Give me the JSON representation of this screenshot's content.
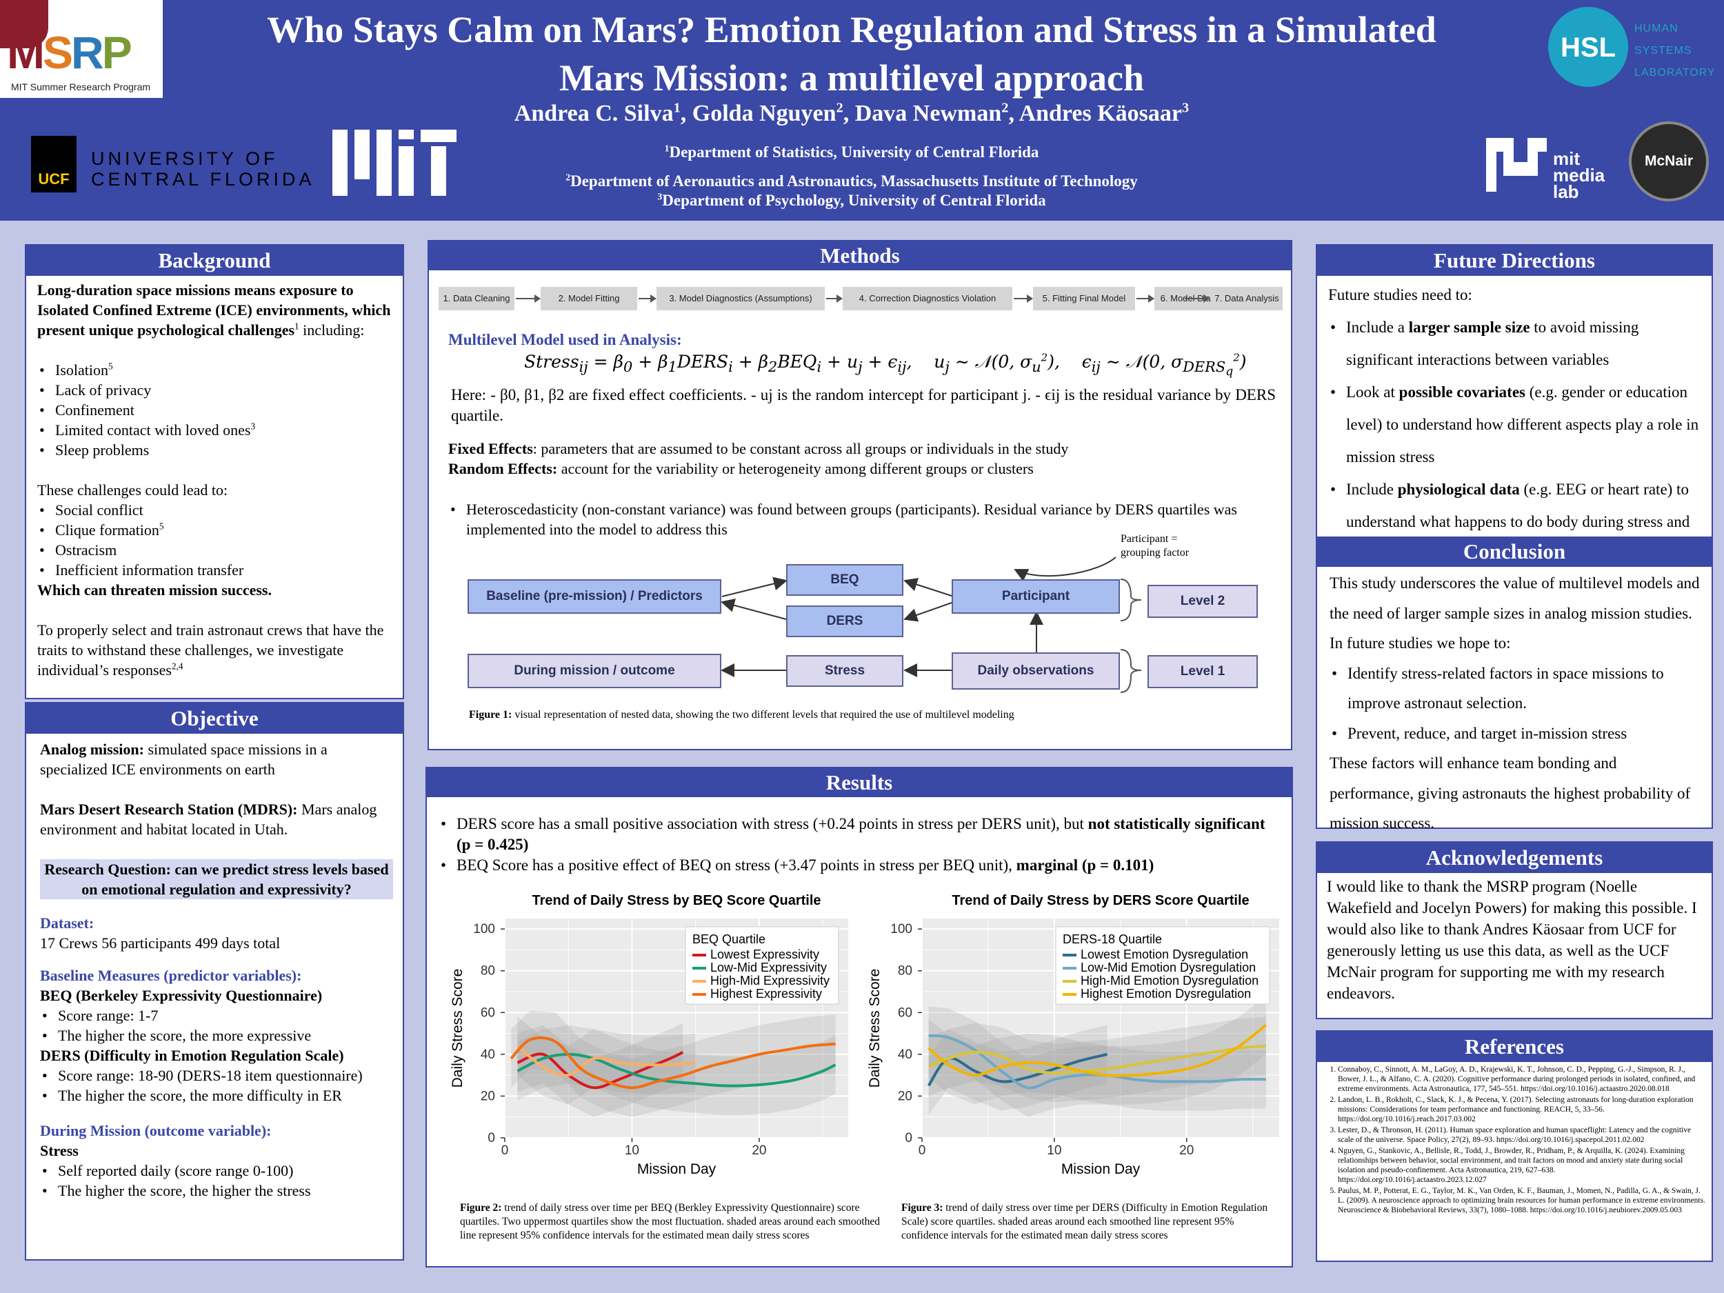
{
  "header": {
    "title_line1": "Who Stays Calm on Mars? Emotion Regulation and Stress in a Simulated",
    "title_line2": "Mars Mission: a multilevel approach",
    "authors": [
      {
        "name": "Andrea C. Silva",
        "sup": "1"
      },
      {
        "name": "Golda Nguyen",
        "sup": "2"
      },
      {
        "name": "Dava Newman",
        "sup": "2"
      },
      {
        "name": "Andres Käosaar",
        "sup": "3"
      }
    ],
    "affiliations": [
      {
        "sup": "1",
        "text": "Department of Statistics, University of Central Florida"
      },
      {
        "sup": "2",
        "text": "Department of Aeronautics and Astronautics, Massachusetts Institute of Technology"
      },
      {
        "sup": "3",
        "text": "Department of Psychology, University of Central Florida"
      }
    ],
    "logos": {
      "msrp": "MSRP",
      "msrp_sub": "MIT Summer Research Program",
      "ucf_mark": "UCF",
      "ucf_line1": "UNIVERSITY OF",
      "ucf_line2": "CENTRAL FLORIDA",
      "hsl_line1": "HUMAN",
      "hsl_line2": "SYSTEMS",
      "hsl_line3": "LABORATORY",
      "medialab_line1": "mit",
      "medialab_line2": "media",
      "medialab_line3": "lab",
      "mcnair": "McNair"
    }
  },
  "background": {
    "heading": "Background",
    "intro_bold": "Long-duration space missions means exposure to Isolated Confined Extreme (ICE) environments, which present unique psychological challenges",
    "intro_sup": "1",
    "intro_tail": "including:",
    "challenges": [
      {
        "text": "Isolation",
        "sup": "5"
      },
      {
        "text": "Lack of privacy",
        "sup": ""
      },
      {
        "text": "Confinement",
        "sup": ""
      },
      {
        "text": "Limited contact with loved ones",
        "sup": "3"
      },
      {
        "text": "Sleep problems",
        "sup": ""
      }
    ],
    "lead_to": "These challenges could lead to:",
    "consequences": [
      {
        "text": "Social conflict",
        "sup": ""
      },
      {
        "text": "Clique formation",
        "sup": "5"
      },
      {
        "text": "Ostracism",
        "sup": ""
      },
      {
        "text": "Inefficient information transfer",
        "sup": ""
      }
    ],
    "threat": "Which can threaten mission success.",
    "closing": "To properly select and train astronaut crews that have the traits to withstand these challenges, we investigate individual’s responses",
    "closing_sup": "2,4"
  },
  "objective": {
    "heading": "Objective",
    "analog_label": "Analog mission:",
    "analog_text": "simulated space missions in a specialized ICE environments on earth",
    "mdrs_label": "Mars Desert Research Station (MDRS):",
    "mdrs_text": "Mars analog environment and habitat located in Utah.",
    "research_question": "Research Question: can we predict stress levels based on emotional regulation and expressivity?",
    "dataset_label": "Dataset:",
    "dataset_text": "17 Crews  56 participants  499 days total",
    "baseline_label": "Baseline Measures (predictor variables):",
    "beq_title": "BEQ (Berkeley Expressivity Questionnaire)",
    "beq_items": [
      "Score range: 1-7",
      "The higher the score, the more expressive"
    ],
    "ders_title": "DERS (Difficulty in Emotion Regulation Scale)",
    "ders_items": [
      "Score range: 18-90 (DERS-18 item questionnaire)",
      "The higher the score, the more difficulty in ER"
    ],
    "during_label": "During Mission (outcome variable):",
    "stress_title": "Stress",
    "stress_items": [
      "Self reported daily (score range 0-100)",
      "The higher the score, the higher the stress"
    ]
  },
  "methods": {
    "heading": "Methods",
    "pipeline": [
      "1. Data Cleaning",
      "2. Model Fitting",
      "3. Model Diagnostics (Assumptions)",
      "4. Correction Diagnostics Violation",
      "5. Fitting Final Model",
      "6. Model Diagnostics",
      "7. Data Analysis"
    ],
    "model_label": "Multilevel Model used in Analysis:",
    "here_text": "Here: - β0, β1, β2 are fixed effect coefficients. - uj is the random intercept for participant j. - ϵij is the residual variance by DERS quartile.",
    "fixed_label": "Fixed Effects",
    "fixed_text": ": parameters that are assumed to be constant across all groups or individuals in the study",
    "random_label": "Random Effects:",
    "random_text": " account for the variability or heterogeneity among different groups or clusters",
    "hetero": "Heteroscedasticity (non-constant variance) was found between groups (participants). Residual variance by DERS quartiles was implemented into the model to address this",
    "diagram": {
      "baseline": "Baseline (pre-mission) / Predictors",
      "beq": "BEQ",
      "ders": "DERS",
      "participant": "Participant",
      "level2": "Level 2",
      "during": "During mission / outcome",
      "stress": "Stress",
      "daily": "Daily observations",
      "level1": "Level 1",
      "note_line1": "Participant =",
      "note_line2": "grouping factor"
    },
    "fig1_label": "Figure 1:",
    "fig1_text": " visual representation of nested data, showing the two different levels that required the use of multilevel modeling"
  },
  "results": {
    "heading": "Results",
    "bullet1_a": "DERS score has a small positive association with stress (+0.24 points in stress per DERS unit), but ",
    "bullet1_b": "not statistically significant (p = 0.425)",
    "bullet2_a": "BEQ Score has a positive effect of BEQ on stress (+3.47 points in stress per BEQ unit), ",
    "bullet2_b": "marginal (p = 0.101)",
    "fig2_label": "Figure 2:",
    "fig2_text": "  trend of daily stress over time per BEQ (Berkley Expressivity Questionnaire) score quartiles. Two uppermost quartiles show the most fluctuation. shaded areas around each smoothed line represent 95% confidence intervals for the estimated mean daily stress scores",
    "fig3_label": "Figure 3:",
    "fig3_text": "  trend of daily stress over time per DERS (Difficulty in Emotion Regulation Scale) score quartiles. shaded areas around each smoothed line represent 95% confidence intervals for the estimated mean daily stress scores"
  },
  "chart_data": [
    {
      "type": "line",
      "title": "Trend of Daily Stress by BEQ Score Quartile",
      "xlabel": "Mission Day",
      "ylabel": "Daily Stress Score",
      "xlim": [
        0,
        27
      ],
      "ylim": [
        0,
        105
      ],
      "xticks": [
        0,
        10,
        20
      ],
      "yticks": [
        0,
        20,
        40,
        60,
        80,
        100
      ],
      "legend_title": "BEQ Quartile",
      "legend_position": "top-right",
      "series": [
        {
          "name": "Lowest Expressivity",
          "color": "#d7191c",
          "x": [
            1,
            3,
            5,
            7,
            9,
            11,
            13,
            14
          ],
          "y": [
            36,
            40,
            30,
            24,
            28,
            33,
            38,
            41
          ]
        },
        {
          "name": "Low-Mid Expressivity",
          "color": "#1b9e77",
          "x": [
            1,
            3,
            5,
            7,
            9,
            11,
            13,
            15,
            17,
            19,
            21,
            23,
            25,
            26
          ],
          "y": [
            32,
            38,
            40,
            38,
            33,
            29,
            27,
            26,
            25,
            25,
            26,
            28,
            32,
            35
          ]
        },
        {
          "name": "High-Mid Expressivity",
          "color": "#fdae61",
          "x": [
            1,
            3,
            5,
            7,
            9,
            11,
            13,
            15
          ],
          "y": [
            44,
            34,
            30,
            38,
            36,
            35,
            35,
            36
          ]
        },
        {
          "name": "Highest Expressivity",
          "color": "#f46d0f",
          "x": [
            0.5,
            2,
            4,
            6,
            8,
            10,
            12,
            14,
            16,
            18,
            20,
            22,
            24,
            26
          ],
          "y": [
            38,
            47,
            46,
            33,
            27,
            24,
            27,
            30,
            34,
            37,
            40,
            42,
            44,
            45
          ]
        }
      ]
    },
    {
      "type": "line",
      "title": "Trend of Daily Stress by DERS Score Quartile",
      "xlabel": "Mission Day",
      "ylabel": "Daily Stress Score",
      "xlim": [
        0,
        27
      ],
      "ylim": [
        0,
        105
      ],
      "xticks": [
        0,
        10,
        20
      ],
      "yticks": [
        0,
        20,
        40,
        60,
        80,
        100
      ],
      "legend_title": "DERS-18 Quartile",
      "legend_position": "top-right",
      "series": [
        {
          "name": "Lowest Emotion Dysregulation",
          "color": "#2c6e8f",
          "x": [
            0.5,
            2,
            4,
            6,
            8,
            10,
            12,
            14
          ],
          "y": [
            25,
            38,
            32,
            27,
            29,
            33,
            37,
            40
          ]
        },
        {
          "name": "Low-Mid Emotion Dysregulation",
          "color": "#6fa8c6",
          "x": [
            0.5,
            2,
            4,
            6,
            8,
            10,
            12,
            14,
            16,
            18,
            20,
            22,
            24,
            26
          ],
          "y": [
            49,
            48,
            42,
            32,
            24,
            28,
            30,
            30,
            28,
            27,
            27,
            27,
            28,
            28
          ]
        },
        {
          "name": "High-Mid Emotion Dysregulation",
          "color": "#d9c43a",
          "x": [
            0.5,
            2,
            4,
            6,
            8,
            10,
            12,
            14,
            16,
            18,
            20,
            22,
            24,
            26
          ],
          "y": [
            34,
            38,
            41,
            39,
            33,
            31,
            32,
            33,
            35,
            37,
            39,
            41,
            43,
            44
          ]
        },
        {
          "name": "Highest Emotion Dysregulation",
          "color": "#f0b400",
          "x": [
            0.5,
            2,
            4,
            6,
            8,
            10,
            12,
            14,
            16,
            18,
            20,
            22,
            24,
            26
          ],
          "y": [
            43,
            35,
            30,
            34,
            36,
            35,
            32,
            30,
            30,
            31,
            33,
            37,
            44,
            54
          ]
        }
      ]
    }
  ],
  "future": {
    "heading": "Future Directions",
    "intro": "Future studies need to:",
    "items": [
      {
        "a": "Include a ",
        "b": "larger sample size",
        "c": " to avoid missing significant interactions between variables"
      },
      {
        "a": "Look at ",
        "b": "possible covariates",
        "c": " (e.g. gender or education level) to understand how different aspects play a role in mission stress"
      },
      {
        "a": "Include ",
        "b": "physiological data",
        "c": " (e.g. EEG or heart rate) to understand what happens to do body during stress and heightened emotions."
      }
    ]
  },
  "conclusion": {
    "heading": "Conclusion",
    "intro": "This study underscores the value of multilevel models and the need of larger sample sizes in analog mission studies. In future studies we hope to:",
    "items": [
      "Identify stress-related factors in space missions to improve astronaut selection.",
      "Prevent, reduce, and target in-mission stress"
    ],
    "closing": "These factors will enhance team bonding and performance, giving astronauts the highest probability of mission success."
  },
  "acknowledgements": {
    "heading": "Acknowledgements",
    "text": "I would like to thank the MSRP program (Noelle Wakefield and Jocelyn Powers) for making this possible. I would also like to thank Andres Käosaar from UCF for generously letting us use this data, as well as the UCF McNair program for supporting me with my research endeavors."
  },
  "references": {
    "heading": "References",
    "items": [
      "Connaboy, C., Sinnott, A. M., LaGoy, A. D., Krajewski, K. T., Johnson, C. D., Pepping, G.-J., Simpson, R. J., Bower, J. L., & Alfano, C. A. (2020). Cognitive performance during prolonged periods in isolated, confined, and extreme environments. Acta Astronautica, 177, 545–551. https://doi.org/10.1016/j.actaastro.2020.08.018",
      "Landon, L. B., Rokholt, C., Slack, K. J., & Pecena, Y. (2017). Selecting astronauts for long-duration exploration missions: Considerations for team performance and functioning. REACH, 5, 33–56. https://doi.org/10.1016/j.reach.2017.03.002",
      "Lester, D., & Thronson, H. (2011). Human space exploration and human spaceflight: Latency and the cognitive scale of the universe. Space Policy, 27(2), 89–93. https://doi.org/10.1016/j.spacepol.2011.02.002",
      "Nguyen, G., Stankovic, A., Bellisle, R., Todd, J., Browder, R., Pridham, P., & Arquilla, K. (2024). Examining relationships between behavior, social environment, and trait factors on mood and anxiety state during social isolation and pseudo-confinement. Acta Astronautica, 219, 627–638. https://doi.org/10.1016/j.actaastro.2023.12.027",
      "Paulus, M. P., Potterat, E. G., Taylor, M. K., Van Orden, K. F., Bauman, J., Momen, N., Padilla, G. A., & Swain, J. L. (2009). A neuroscience approach to optimizing brain resources for human performance in extreme environments. Neuroscience & Biobehavioral Reviews, 33(7), 1080–1088. https://doi.org/10.1016/j.neubiorev.2009.05.003"
    ]
  }
}
